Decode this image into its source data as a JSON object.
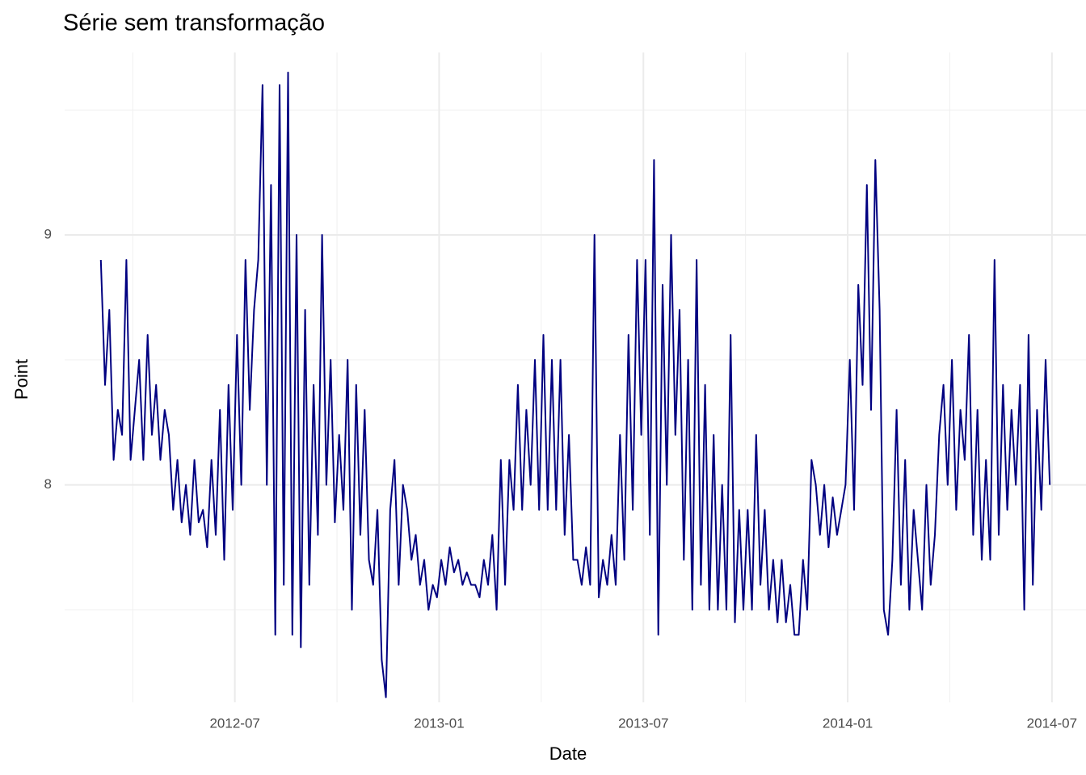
{
  "chart_data": {
    "type": "line",
    "title": "Série sem transformação",
    "x_label": "Date",
    "y_label": "Point",
    "x": [
      "2012-03",
      "2012-03",
      "2012-03",
      "2012-03",
      "2012-03",
      "2012-03",
      "2012-03",
      "2012-03",
      "2012-04",
      "2012-04",
      "2012-04",
      "2012-04",
      "2012-04",
      "2012-04",
      "2012-04",
      "2012-04",
      "2012-05",
      "2012-05",
      "2012-05",
      "2012-05",
      "2012-05",
      "2012-05",
      "2012-05",
      "2012-05",
      "2012-06",
      "2012-06",
      "2012-06",
      "2012-06",
      "2012-06",
      "2012-06",
      "2012-06",
      "2012-06",
      "2012-07",
      "2012-07",
      "2012-07",
      "2012-07",
      "2012-07",
      "2012-07",
      "2012-07",
      "2012-07",
      "2012-08",
      "2012-08",
      "2012-08",
      "2012-08",
      "2012-08",
      "2012-08",
      "2012-08",
      "2012-08",
      "2012-09",
      "2012-09",
      "2012-09",
      "2012-09",
      "2012-09",
      "2012-09",
      "2012-09",
      "2012-09",
      "2012-10",
      "2012-10",
      "2012-10",
      "2012-10",
      "2012-10",
      "2012-10",
      "2012-10",
      "2012-10",
      "2012-11",
      "2012-11",
      "2012-11",
      "2012-11",
      "2012-11",
      "2012-11",
      "2012-11",
      "2012-11",
      "2012-12",
      "2012-12",
      "2012-12",
      "2012-12",
      "2012-12",
      "2012-12",
      "2012-12",
      "2012-12",
      "2013-01",
      "2013-01",
      "2013-01",
      "2013-01",
      "2013-01",
      "2013-01",
      "2013-01",
      "2013-01",
      "2013-02",
      "2013-02",
      "2013-02",
      "2013-02",
      "2013-02",
      "2013-02",
      "2013-02",
      "2013-02",
      "2013-03",
      "2013-03",
      "2013-03",
      "2013-03",
      "2013-03",
      "2013-03",
      "2013-03",
      "2013-03",
      "2013-04",
      "2013-04",
      "2013-04",
      "2013-04",
      "2013-04",
      "2013-04",
      "2013-04",
      "2013-04",
      "2013-05",
      "2013-05",
      "2013-05",
      "2013-05",
      "2013-05",
      "2013-05",
      "2013-05",
      "2013-05",
      "2013-06",
      "2013-06",
      "2013-06",
      "2013-06",
      "2013-06",
      "2013-06",
      "2013-06",
      "2013-06",
      "2013-07",
      "2013-07",
      "2013-07",
      "2013-07",
      "2013-07",
      "2013-07",
      "2013-07",
      "2013-07",
      "2013-08",
      "2013-08",
      "2013-08",
      "2013-08",
      "2013-08",
      "2013-08",
      "2013-08",
      "2013-08",
      "2013-09",
      "2013-09",
      "2013-09",
      "2013-09",
      "2013-09",
      "2013-09",
      "2013-09",
      "2013-09",
      "2013-10",
      "2013-10",
      "2013-10",
      "2013-10",
      "2013-10",
      "2013-10",
      "2013-10",
      "2013-10",
      "2013-11",
      "2013-11",
      "2013-11",
      "2013-11",
      "2013-11",
      "2013-11",
      "2013-11",
      "2013-11",
      "2013-12",
      "2013-12",
      "2013-12",
      "2013-12",
      "2013-12",
      "2013-12",
      "2013-12",
      "2013-12",
      "2014-01",
      "2014-01",
      "2014-01",
      "2014-01",
      "2014-01",
      "2014-01",
      "2014-01",
      "2014-01",
      "2014-02",
      "2014-02",
      "2014-02",
      "2014-02",
      "2014-02",
      "2014-02",
      "2014-02",
      "2014-02",
      "2014-03",
      "2014-03",
      "2014-03",
      "2014-03",
      "2014-03",
      "2014-03",
      "2014-03",
      "2014-03",
      "2014-04",
      "2014-04",
      "2014-04",
      "2014-04",
      "2014-04",
      "2014-04",
      "2014-04",
      "2014-04",
      "2014-05",
      "2014-05",
      "2014-05",
      "2014-05",
      "2014-05",
      "2014-05",
      "2014-05",
      "2014-05",
      "2014-06",
      "2014-06",
      "2014-06",
      "2014-06",
      "2014-06",
      "2014-06",
      "2014-06",
      "2014-06"
    ],
    "series": [
      {
        "color": "#000080",
        "values": [
          8.9,
          8.4,
          8.7,
          8.1,
          8.3,
          8.2,
          8.9,
          8.1,
          8.3,
          8.5,
          8.1,
          8.6,
          8.2,
          8.4,
          8.1,
          8.3,
          8.2,
          7.9,
          8.1,
          7.85,
          8.0,
          7.8,
          8.1,
          7.85,
          7.9,
          7.75,
          8.1,
          7.8,
          8.3,
          7.7,
          8.4,
          7.9,
          8.6,
          8.0,
          8.9,
          8.3,
          8.7,
          8.9,
          9.6,
          8.0,
          9.2,
          7.4,
          9.6,
          7.6,
          9.65,
          7.4,
          9.0,
          7.35,
          8.7,
          7.6,
          8.4,
          7.8,
          9.0,
          8.0,
          8.5,
          7.85,
          8.2,
          7.9,
          8.5,
          7.5,
          8.4,
          7.8,
          8.3,
          7.7,
          7.6,
          7.9,
          7.3,
          7.15,
          7.9,
          8.1,
          7.6,
          8.0,
          7.9,
          7.7,
          7.8,
          7.6,
          7.7,
          7.5,
          7.6,
          7.55,
          7.7,
          7.6,
          7.75,
          7.65,
          7.7,
          7.6,
          7.65,
          7.6,
          7.6,
          7.55,
          7.7,
          7.6,
          7.8,
          7.5,
          8.1,
          7.6,
          8.1,
          7.9,
          8.4,
          7.9,
          8.3,
          8.0,
          8.5,
          7.9,
          8.6,
          7.9,
          8.5,
          7.9,
          8.5,
          7.8,
          8.2,
          7.7,
          7.7,
          7.6,
          7.75,
          7.6,
          9.0,
          7.55,
          7.7,
          7.6,
          7.8,
          7.6,
          8.2,
          7.7,
          8.6,
          7.9,
          8.9,
          8.2,
          8.9,
          7.8,
          9.3,
          7.4,
          8.8,
          8.0,
          9.0,
          8.2,
          8.7,
          7.7,
          8.5,
          7.5,
          8.9,
          7.6,
          8.4,
          7.5,
          8.2,
          7.5,
          8.0,
          7.5,
          8.6,
          7.45,
          7.9,
          7.5,
          7.9,
          7.5,
          8.2,
          7.6,
          7.9,
          7.5,
          7.7,
          7.45,
          7.7,
          7.45,
          7.6,
          7.4,
          7.4,
          7.7,
          7.5,
          8.1,
          8.0,
          7.8,
          8.0,
          7.75,
          7.95,
          7.8,
          7.9,
          8.0,
          8.5,
          7.9,
          8.8,
          8.4,
          9.2,
          8.3,
          9.3,
          8.7,
          7.5,
          7.4,
          7.7,
          8.3,
          7.6,
          8.1,
          7.5,
          7.9,
          7.7,
          7.5,
          8.0,
          7.6,
          7.8,
          8.2,
          8.4,
          8.0,
          8.5,
          7.9,
          8.3,
          8.1,
          8.6,
          7.8,
          8.3,
          7.7,
          8.1,
          7.7,
          8.9,
          7.8,
          8.4,
          7.9,
          8.3,
          8.0,
          8.4,
          7.5,
          8.6,
          7.6,
          8.3,
          7.9,
          8.5,
          8.0
        ]
      }
    ],
    "xlim": [
      "2012-02",
      "2014-08"
    ],
    "xticks": [
      "2012-07",
      "2013-01",
      "2013-07",
      "2014-01",
      "2014-07"
    ],
    "minor_xticks": [
      "2012-04",
      "2012-10",
      "2013-04",
      "2013-10",
      "2014-04"
    ],
    "ylim": [
      7.13,
      9.73
    ],
    "yticks": [
      8,
      9
    ],
    "minor_yticks": [
      7.5,
      8.5,
      9.5
    ],
    "grid": true
  }
}
